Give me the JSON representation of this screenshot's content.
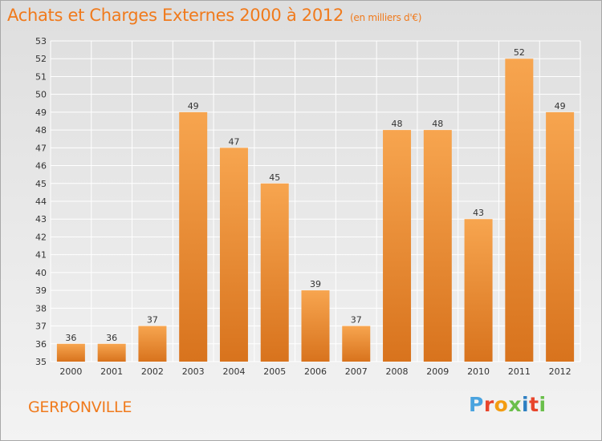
{
  "header": {
    "title": "Achats et Charges Externes 2000 à 2012",
    "unit": "(en milliers d'€)"
  },
  "footer": {
    "commune": "GERPONVILLE",
    "logo": {
      "text": "Proxiti",
      "letter_colors": [
        "#4aa3df",
        "#e8452c",
        "#f39c12",
        "#6abf4b",
        "#2e7fc2",
        "#e8452c",
        "#6abf4b"
      ]
    }
  },
  "colors": {
    "title": "#f07a1c",
    "bar_light": "#f7a54f",
    "bar_dark": "#d8731d",
    "grid": "#ffffff",
    "axis_text": "#333333"
  },
  "chart_data": {
    "type": "bar",
    "title": "Achats et Charges Externes 2000 à 2012",
    "subtitle": "(en milliers d'€)",
    "xlabel": "",
    "ylabel": "",
    "categories": [
      "2000",
      "2001",
      "2002",
      "2003",
      "2004",
      "2005",
      "2006",
      "2007",
      "2008",
      "2009",
      "2010",
      "2011",
      "2012"
    ],
    "values": [
      36,
      36,
      37,
      49,
      47,
      45,
      39,
      37,
      48,
      48,
      43,
      52,
      49
    ],
    "ylim": [
      35,
      53
    ],
    "yticks": [
      35,
      36,
      37,
      38,
      39,
      40,
      41,
      42,
      43,
      44,
      45,
      46,
      47,
      48,
      49,
      50,
      51,
      52,
      53
    ],
    "grid": true,
    "data_labels": true
  }
}
